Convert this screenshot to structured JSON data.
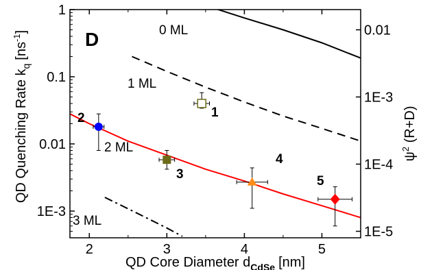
{
  "chart_data": {
    "type": "line",
    "title": "",
    "panel_label": "D",
    "xlabel": "QD Core Diameter d",
    "xlabel_sub": "CdSe",
    "xlabel_unit": "[nm]",
    "ylabel": "QD Quenching Rate k",
    "ylabel_sub": "q",
    "ylabel_unit": "[ns",
    "ylabel_unit_sup": "-1",
    "ylabel_unit_end": "]",
    "y2label": "ψ",
    "y2label_sup": "2",
    "y2label_rest": " (R+D)",
    "xlim": [
      1.75,
      5.5
    ],
    "ylim": [
      0.0004,
      1.0
    ],
    "yscale": "log",
    "y2lim": [
      1.6e-05,
      0.04
    ],
    "y2scale": "log",
    "grid": false,
    "x_ticks": [
      {
        "v": 2,
        "label": "2"
      },
      {
        "v": 3,
        "label": "3"
      },
      {
        "v": 4,
        "label": "4"
      },
      {
        "v": 5,
        "label": "5"
      }
    ],
    "y_ticks": [
      {
        "v": 0.001,
        "label": "1E-3"
      },
      {
        "v": 0.01,
        "label": "0.01"
      },
      {
        "v": 0.1,
        "label": "0.1"
      },
      {
        "v": 1,
        "label": "1"
      }
    ],
    "y2_ticks": [
      {
        "v": 2e-05,
        "label": "1E-5"
      },
      {
        "v": 0.0002,
        "label": "1E-4"
      },
      {
        "v": 0.002,
        "label": "1E-3"
      },
      {
        "v": 0.02,
        "label": "0.01"
      }
    ],
    "lines": [
      {
        "annotation": "0 ML",
        "color": "#000000",
        "style": "solid",
        "x": [
          3.5,
          4.0,
          4.5,
          5.0,
          5.5
        ],
        "y": [
          1.15,
          0.75,
          0.5,
          0.32,
          0.19
        ]
      },
      {
        "annotation": "1 ML",
        "color": "#000000",
        "style": "dashed",
        "x": [
          2.55,
          3.0,
          3.5,
          4.0,
          4.5,
          5.0,
          5.5
        ],
        "y": [
          0.2,
          0.12,
          0.07,
          0.042,
          0.026,
          0.017,
          0.011
        ]
      },
      {
        "annotation": "2 ML",
        "color": "#ff0000",
        "style": "solid",
        "x": [
          1.75,
          2.0,
          2.5,
          3.0,
          3.5,
          4.0,
          4.5,
          5.0,
          5.5
        ],
        "y": [
          0.028,
          0.02,
          0.011,
          0.0068,
          0.0042,
          0.0028,
          0.0018,
          0.0012,
          0.0008
        ]
      },
      {
        "annotation": "3 ML",
        "color": "#000000",
        "style": "dashdot",
        "x": [
          2.2,
          2.6,
          3.0,
          3.2
        ],
        "y": [
          0.0016,
          0.00095,
          0.00056,
          0.00042
        ]
      }
    ],
    "points": [
      {
        "label": "1",
        "x": 3.45,
        "y": 0.04,
        "xerr": 0.1,
        "yerr_low": 0.034,
        "yerr_high": 0.058,
        "marker": "square-open",
        "color": "#6b6b1a"
      },
      {
        "label": "2",
        "x": 2.12,
        "y": 0.018,
        "xerr": 0.07,
        "yerr_low": 0.008,
        "yerr_high": 0.028,
        "marker": "circle",
        "color": "#0000ff"
      },
      {
        "label": "3",
        "x": 3.0,
        "y": 0.0058,
        "xerr": 0.1,
        "yerr_low": 0.0042,
        "yerr_high": 0.008,
        "marker": "square",
        "color": "#6b6b1a"
      },
      {
        "label": "4",
        "x": 4.1,
        "y": 0.0027,
        "xerr": 0.2,
        "yerr_low": 0.0011,
        "yerr_high": 0.0044,
        "marker": "triangle",
        "color": "#ff8c1a"
      },
      {
        "label": "5",
        "x": 5.17,
        "y": 0.0015,
        "xerr": 0.22,
        "yerr_low": 0.0006,
        "yerr_high": 0.0023,
        "marker": "diamond",
        "color": "#ff0000"
      }
    ]
  }
}
